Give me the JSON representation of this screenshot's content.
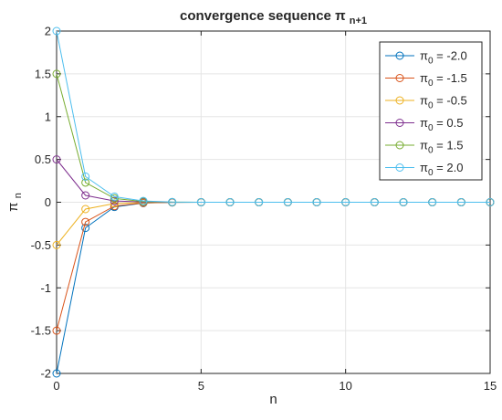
{
  "chart_data": {
    "type": "line",
    "title": "convergence sequence",
    "title_math": {
      "symbol": "π",
      "subscript": "n+1"
    },
    "xlabel": "n",
    "ylabel": {
      "symbol": "π",
      "subscript": "n"
    },
    "xlim": [
      0,
      15
    ],
    "ylim": [
      -2,
      2
    ],
    "xticks": [
      0,
      5,
      10,
      15
    ],
    "yticks": [
      -2,
      -1.5,
      -1,
      -0.5,
      0,
      0.5,
      1,
      1.5,
      2
    ],
    "xtick_labels": [
      "0",
      "5",
      "10",
      "15"
    ],
    "ytick_labels": [
      "-2",
      "-1.5",
      "-1",
      "-0.5",
      "0",
      "0.5",
      "1",
      "1.5",
      "2"
    ],
    "grid": true,
    "legend_position": "top-right",
    "marker": "circle",
    "x": [
      0,
      1,
      2,
      3,
      4,
      5,
      6,
      7,
      8,
      9,
      10,
      11,
      12,
      13,
      14,
      15
    ],
    "series": [
      {
        "legend_sym": "π",
        "legend_sub": "0",
        "legend_rest": " = -2.0",
        "color": "#0072BD",
        "values": [
          -2.0,
          -0.3,
          -0.055,
          -0.01,
          -0.002,
          0,
          0,
          0,
          0,
          0,
          0,
          0,
          0,
          0,
          0,
          0
        ]
      },
      {
        "legend_sym": "π",
        "legend_sub": "0",
        "legend_rest": " = -1.5",
        "color": "#D95319",
        "values": [
          -1.5,
          -0.23,
          -0.045,
          -0.008,
          -0.001,
          0,
          0,
          0,
          0,
          0,
          0,
          0,
          0,
          0,
          0,
          0
        ]
      },
      {
        "legend_sym": "π",
        "legend_sub": "0",
        "legend_rest": " = -0.5",
        "color": "#EDB120",
        "values": [
          -0.5,
          -0.08,
          -0.015,
          -0.003,
          0,
          0,
          0,
          0,
          0,
          0,
          0,
          0,
          0,
          0,
          0,
          0
        ]
      },
      {
        "legend_sym": "π",
        "legend_sub": "0",
        "legend_rest": " = 0.5",
        "color": "#7E2F8E",
        "values": [
          0.5,
          0.08,
          0.015,
          0.003,
          0,
          0,
          0,
          0,
          0,
          0,
          0,
          0,
          0,
          0,
          0,
          0
        ]
      },
      {
        "legend_sym": "π",
        "legend_sub": "0",
        "legend_rest": " = 1.5",
        "color": "#77AC30",
        "values": [
          1.5,
          0.23,
          0.045,
          0.008,
          0.001,
          0,
          0,
          0,
          0,
          0,
          0,
          0,
          0,
          0,
          0,
          0
        ]
      },
      {
        "legend_sym": "π",
        "legend_sub": "0",
        "legend_rest": " = 2.0",
        "color": "#4DBEEE",
        "values": [
          2.0,
          0.3,
          0.065,
          0.015,
          0.003,
          0,
          0,
          0,
          0,
          0,
          0,
          0,
          0,
          0,
          0,
          0
        ]
      }
    ]
  }
}
